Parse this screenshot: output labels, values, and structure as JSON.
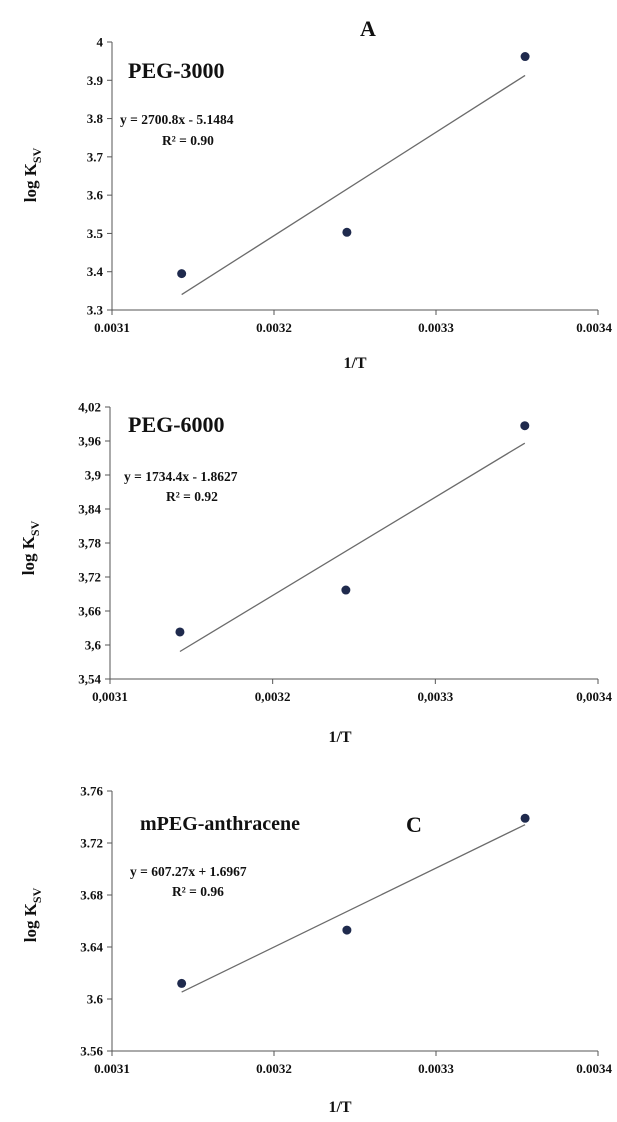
{
  "chart_data": [
    {
      "type": "scatter",
      "panel_label": "A",
      "series_label": "PEG-3000",
      "xlabel": "1/T",
      "ylabel": "log K",
      "ylabel_sub": "SV",
      "xlim": [
        0.0031,
        0.0034
      ],
      "ylim": [
        3.3,
        4.0
      ],
      "xticks": [
        "0.0031",
        "0.0032",
        "0.0033",
        "0.0034"
      ],
      "yticks": [
        "3.3",
        "3.4",
        "3.5",
        "3.6",
        "3.7",
        "3.8",
        "3.9",
        "4"
      ],
      "points": [
        {
          "x": 0.003143,
          "y": 3.395
        },
        {
          "x": 0.003245,
          "y": 3.503
        },
        {
          "x": 0.003355,
          "y": 3.962
        }
      ],
      "trendline": {
        "slope": 2700.8,
        "intercept": -5.1484
      },
      "equation": "y = 2700.8x - 5.1484",
      "r2": "R² = 0.90"
    },
    {
      "type": "scatter",
      "panel_label": "",
      "series_label": "PEG-6000",
      "xlabel": "1/T",
      "ylabel": "log K",
      "ylabel_sub": "SV",
      "xlim": [
        0.0031,
        0.0034
      ],
      "ylim": [
        3.54,
        4.02
      ],
      "xticks": [
        "0,0031",
        "0,0032",
        "0,0033",
        "0,0034"
      ],
      "yticks": [
        "3,54",
        "3,6",
        "3,66",
        "3,72",
        "3,78",
        "3,84",
        "3,9",
        "3,96",
        "4,02"
      ],
      "points": [
        {
          "x": 0.003143,
          "y": 3.623
        },
        {
          "x": 0.003245,
          "y": 3.697
        },
        {
          "x": 0.003355,
          "y": 3.987
        }
      ],
      "trendline": {
        "slope": 1734.4,
        "intercept": -1.8627
      },
      "equation": "y = 1734.4x - 1.8627",
      "r2": "R² = 0.92"
    },
    {
      "type": "scatter",
      "panel_label": "C",
      "series_label": "mPEG-anthracene",
      "xlabel": "1/T",
      "ylabel": "log K",
      "ylabel_sub": "SV",
      "xlim": [
        0.0031,
        0.0034
      ],
      "ylim": [
        3.56,
        3.76
      ],
      "xticks": [
        "0.0031",
        "0.0032",
        "0.0033",
        "0.0034"
      ],
      "yticks": [
        "3.56",
        "3.6",
        "3.64",
        "3.68",
        "3.72",
        "3.76"
      ],
      "points": [
        {
          "x": 0.003143,
          "y": 3.612
        },
        {
          "x": 0.003245,
          "y": 3.653
        },
        {
          "x": 0.003355,
          "y": 3.739
        }
      ],
      "trendline": {
        "slope": 607.27,
        "intercept": 1.6967
      },
      "equation": "y = 607.27x + 1.6967",
      "r2": "R² = 0.96"
    }
  ]
}
